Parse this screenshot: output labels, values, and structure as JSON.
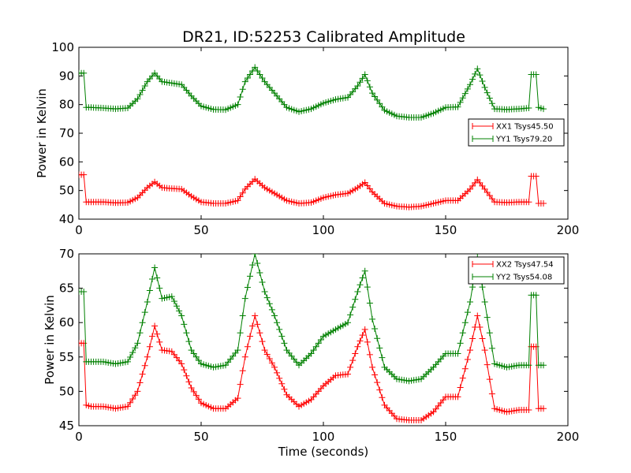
{
  "title": "DR21, ID:52253 Calibrated Amplitude",
  "chart_data": [
    {
      "type": "line",
      "title": "DR21, ID:52253 Calibrated Amplitude",
      "xlabel": "",
      "ylabel": "Power in Kelvin",
      "xlim": [
        0,
        200
      ],
      "ylim": [
        40,
        100
      ],
      "xticks": [
        0,
        50,
        100,
        150,
        200
      ],
      "yticks": [
        40,
        50,
        60,
        70,
        80,
        90,
        100
      ],
      "grid": false,
      "legend_position": "center-right",
      "marker": "+",
      "series": [
        {
          "name": "XX1 Tsys45.50",
          "color": "#ff0000",
          "x": [
            0,
            2,
            3,
            5,
            10,
            15,
            20,
            24,
            28,
            31,
            34,
            38,
            42,
            46,
            50,
            55,
            60,
            65,
            68,
            72,
            76,
            80,
            85,
            90,
            95,
            100,
            105,
            110,
            114,
            117,
            120,
            125,
            130,
            135,
            140,
            145,
            150,
            155,
            160,
            163,
            166,
            170,
            175,
            180,
            184,
            185,
            187,
            188,
            190
          ],
          "y": [
            55.5,
            55.5,
            46,
            46,
            46,
            45.7,
            45.8,
            47.5,
            51,
            53,
            51,
            50.7,
            50.5,
            48,
            46,
            45.5,
            45.5,
            46.5,
            50.5,
            54,
            51,
            49,
            46.5,
            45.5,
            45.8,
            47.5,
            48.5,
            49,
            51,
            52.8,
            49.5,
            45.5,
            44.5,
            44.2,
            44.5,
            45.5,
            46.5,
            46.5,
            50.5,
            53.8,
            50.5,
            46,
            45.8,
            46,
            46,
            55,
            55,
            45.5,
            45.5
          ]
        },
        {
          "name": "YY1 Tsys79.20",
          "color": "#008000",
          "x": [
            0,
            2,
            3,
            5,
            10,
            15,
            20,
            24,
            28,
            31,
            34,
            38,
            42,
            46,
            50,
            55,
            60,
            65,
            68,
            72,
            76,
            80,
            85,
            90,
            95,
            100,
            105,
            110,
            114,
            117,
            120,
            125,
            130,
            135,
            140,
            145,
            150,
            155,
            160,
            163,
            166,
            170,
            175,
            180,
            184,
            185,
            187,
            188,
            190
          ],
          "y": [
            91,
            91,
            79,
            79,
            78.8,
            78.5,
            78.8,
            82,
            88,
            91,
            88,
            87.5,
            87,
            83,
            79.5,
            78.3,
            78.2,
            80,
            88,
            93,
            88,
            84,
            79,
            77.5,
            78.5,
            80.5,
            81.8,
            82.5,
            86.5,
            90.5,
            84,
            78,
            76,
            75.5,
            75.5,
            77,
            79,
            79.2,
            87,
            92.5,
            86,
            78.5,
            78.3,
            78.5,
            78.8,
            90.5,
            90.5,
            79,
            78.5
          ]
        }
      ]
    },
    {
      "type": "line",
      "title": "",
      "xlabel": "Time (seconds)",
      "ylabel": "Power in Kelvin",
      "xlim": [
        0,
        200
      ],
      "ylim": [
        45,
        70
      ],
      "xticks": [
        0,
        50,
        100,
        150,
        200
      ],
      "yticks": [
        45,
        50,
        55,
        60,
        65,
        70
      ],
      "grid": false,
      "legend_position": "top-right",
      "marker": "+",
      "series": [
        {
          "name": "XX2 Tsys47.54",
          "color": "#ff0000",
          "x": [
            0,
            2,
            3,
            5,
            10,
            15,
            20,
            24,
            28,
            31,
            34,
            38,
            42,
            46,
            50,
            55,
            60,
            65,
            68,
            72,
            76,
            80,
            85,
            90,
            95,
            100,
            105,
            110,
            114,
            117,
            120,
            125,
            130,
            135,
            140,
            145,
            150,
            155,
            160,
            163,
            166,
            170,
            175,
            180,
            184,
            185,
            187,
            188,
            190
          ],
          "y": [
            57,
            57,
            48,
            47.8,
            47.8,
            47.5,
            47.8,
            50,
            55,
            59.5,
            56,
            55.8,
            54,
            50.5,
            48.3,
            47.5,
            47.5,
            49,
            55,
            61,
            56,
            53.5,
            49.5,
            47.8,
            48.8,
            50.8,
            52.3,
            52.5,
            56.5,
            59,
            53.5,
            48,
            46,
            45.8,
            45.8,
            47,
            49.2,
            49.2,
            56,
            61,
            56,
            47.5,
            47,
            47.3,
            47.3,
            56.5,
            56.5,
            47.5,
            47.5
          ]
        },
        {
          "name": "YY2 Tsys54.08",
          "color": "#008000",
          "x": [
            0,
            2,
            3,
            5,
            10,
            15,
            20,
            24,
            28,
            31,
            34,
            38,
            42,
            46,
            50,
            55,
            60,
            65,
            68,
            72,
            76,
            80,
            85,
            90,
            95,
            100,
            105,
            110,
            114,
            117,
            120,
            125,
            130,
            135,
            140,
            145,
            150,
            155,
            160,
            163,
            166,
            170,
            175,
            180,
            184,
            185,
            187,
            188,
            190
          ],
          "y": [
            64.5,
            64.5,
            54.3,
            54.3,
            54.3,
            54,
            54.3,
            57,
            63,
            68,
            63.5,
            63.8,
            61,
            56,
            54,
            53.5,
            53.8,
            56,
            63.5,
            70,
            64.5,
            61,
            56,
            53.8,
            55.5,
            58,
            59,
            60,
            64.5,
            67.5,
            60.5,
            53.5,
            51.8,
            51.5,
            51.8,
            53.5,
            55.5,
            55.5,
            63,
            69.5,
            63,
            54,
            53.5,
            53.8,
            53.8,
            64,
            64,
            53.8,
            53.8
          ]
        }
      ]
    }
  ]
}
